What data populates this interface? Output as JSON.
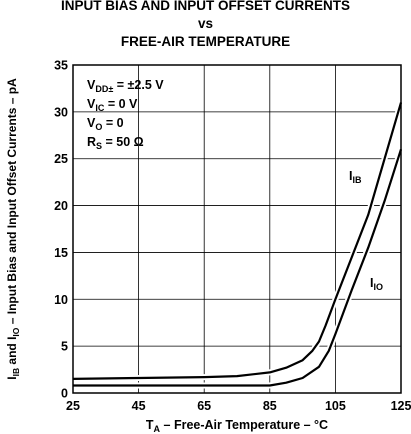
{
  "chart_data": {
    "type": "line",
    "title": [
      "INPUT BIAS AND INPUT OFFSET CURRENTS",
      "vs",
      "FREE-AIR TEMPERATURE"
    ],
    "xlabel": {
      "main": "T",
      "sub": "A",
      "rest": " – Free-Air Temperature – °C"
    },
    "ylabel": {
      "p1": "I",
      "s1": "IB",
      "p2": " and I",
      "s2": "IO",
      "p3": " – Input Bias and Input Offset Currents – pA"
    },
    "xlim": [
      25,
      125
    ],
    "ylim": [
      0,
      35
    ],
    "xticks": [
      25,
      45,
      65,
      85,
      105,
      125
    ],
    "yticks": [
      0,
      5,
      10,
      15,
      20,
      25,
      30,
      35
    ],
    "grid": true,
    "conditions": [
      {
        "main": "V",
        "sub": "DD±",
        "rest": " = ±2.5 V"
      },
      {
        "main": "V",
        "sub": "IC",
        "rest": " = 0 V"
      },
      {
        "main": "V",
        "sub": "O",
        "rest": " = 0"
      },
      {
        "main": "R",
        "sub": "S",
        "rest": " = 50 Ω"
      }
    ],
    "series": [
      {
        "name": "IB",
        "label_main": "I",
        "label_sub": "IB",
        "x": [
          25,
          45,
          65,
          75,
          85,
          90,
          95,
          98,
          100,
          102,
          105,
          110,
          115,
          120,
          125
        ],
        "y": [
          1.5,
          1.6,
          1.7,
          1.8,
          2.2,
          2.7,
          3.5,
          4.5,
          5.5,
          7.2,
          10.0,
          14.5,
          19.0,
          25.0,
          31.0
        ]
      },
      {
        "name": "IO",
        "label_main": "I",
        "label_sub": "IO",
        "x": [
          25,
          45,
          65,
          85,
          90,
          95,
          100,
          103,
          105,
          110,
          115,
          120,
          125
        ],
        "y": [
          0.8,
          0.8,
          0.8,
          0.8,
          1.1,
          1.6,
          2.8,
          4.5,
          6.3,
          11.0,
          15.5,
          20.5,
          26.0
        ]
      }
    ]
  }
}
